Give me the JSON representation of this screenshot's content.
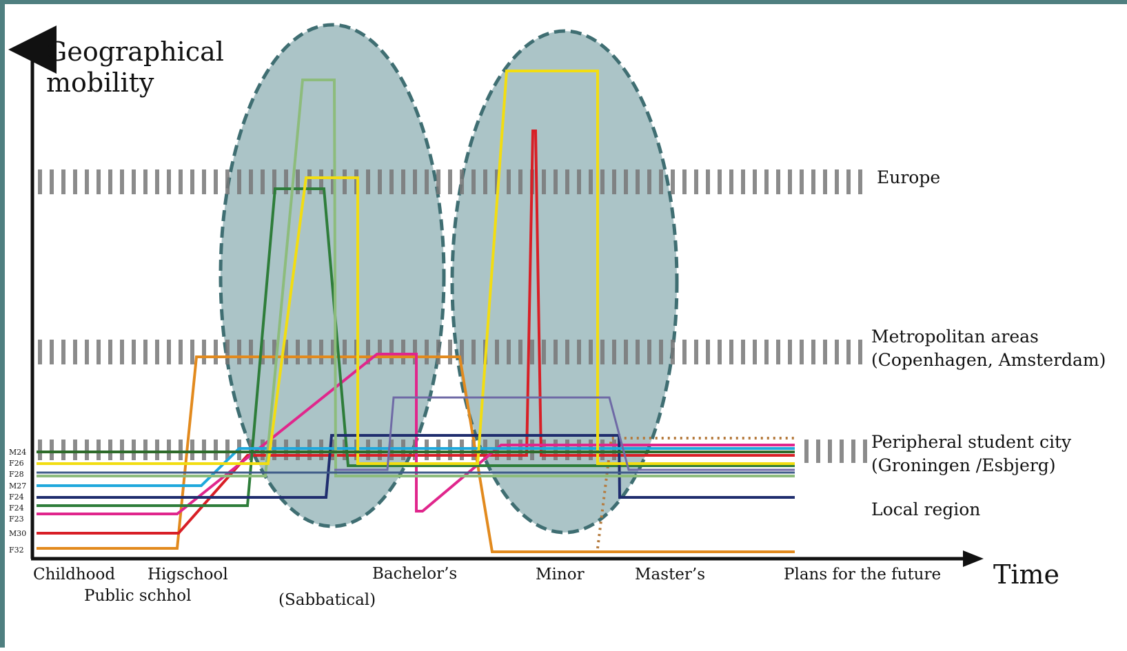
{
  "axes": {
    "y_title_line1": "Geographical",
    "y_title_line2": "mobility",
    "x_title": "Time"
  },
  "bands": {
    "europe": "Europe",
    "metro_line1": "Metropolitan areas",
    "metro_line2": "(Copenhagen, Amsterdam)",
    "peripheral_line1": "Peripheral student city",
    "peripheral_line2": "(Groningen /Esbjerg)",
    "local": "Local region"
  },
  "phases": {
    "childhood": "Childhood",
    "public_school": "Public schhol",
    "highschool": "Higschool",
    "sabbatical": "(Sabbatical)",
    "bachelors": "Bachelor’s",
    "minor": "Minor",
    "masters": "Master’s",
    "future": "Plans for the future"
  },
  "participants": [
    "M24",
    "F26",
    "F28",
    "M27",
    "F24",
    "F24",
    "F23",
    "M30",
    "F32"
  ],
  "colors": {
    "frame": "#4f7f80",
    "ellipse_fill": "#8fb0b4",
    "ellipse_stroke": "#3f6e72",
    "band_dash": "#777777",
    "M24": "#2d6b2a",
    "F26": "#f2dd12",
    "F28": "#8dbc7c",
    "M27": "#1fa8dc",
    "F24_navy": "#1f2d6e",
    "F24_green": "#2e7d3a",
    "F23": "#e0268c",
    "M30": "#d81f26",
    "F32": "#e28a1e"
  }
}
